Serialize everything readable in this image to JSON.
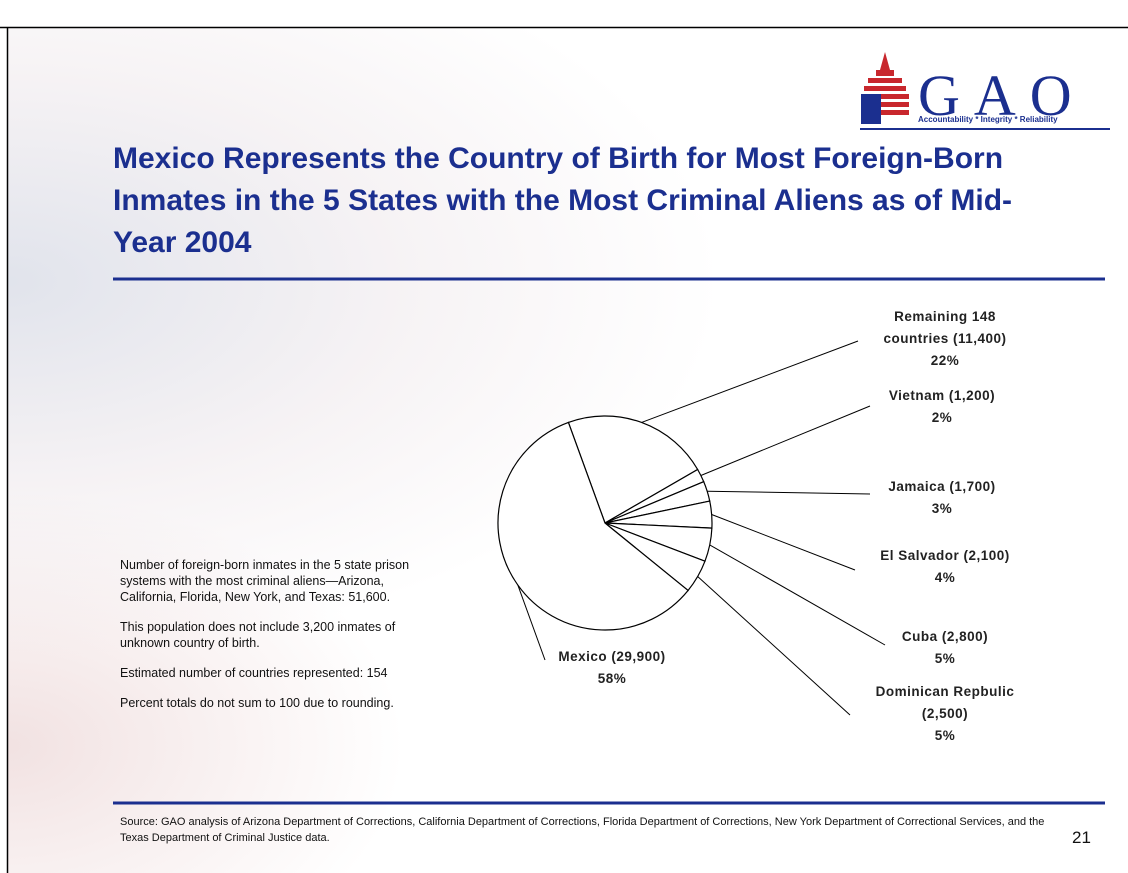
{
  "slide": {
    "logo": "GAO",
    "tagline": "Accountability * Integrity * Reliability",
    "title": "Mexico Represents the Country of Birth for Most Foreign-Born Inmates in the 5 States with the Most Criminal Aliens as of Mid-Year 2004",
    "notes": [
      "Number of foreign-born inmates in the 5 state prison systems with the most criminal aliens—Arizona, California, Florida, New York, and Texas: 51,600.",
      "This population does not include 3,200 inmates of unknown country of birth.",
      "Estimated number of countries represented: 154",
      "Percent totals do not sum to 100 due to rounding."
    ],
    "source": "Source: GAO analysis of Arizona Department of Corrections, California Department of Corrections, Florida Department of Corrections, New York Department of Correctional Services, and the Texas Department of Criminal Justice data.",
    "page_number": "21"
  },
  "chart_data": {
    "type": "pie",
    "categories": [
      "Remaining 148 countries (11,400)",
      "Vietnam (1,200)",
      "Jamaica (1,700)",
      "El Salvador (2,100)",
      "Cuba (2,800)",
      "Dominican Repbulic (2,500)",
      "Mexico (29,900)"
    ],
    "values": [
      22,
      2,
      3,
      4,
      5,
      5,
      58
    ],
    "value_labels": [
      "22%",
      "2%",
      "3%",
      "4%",
      "5%",
      "5%",
      "58%"
    ],
    "color": "#ffffff"
  }
}
